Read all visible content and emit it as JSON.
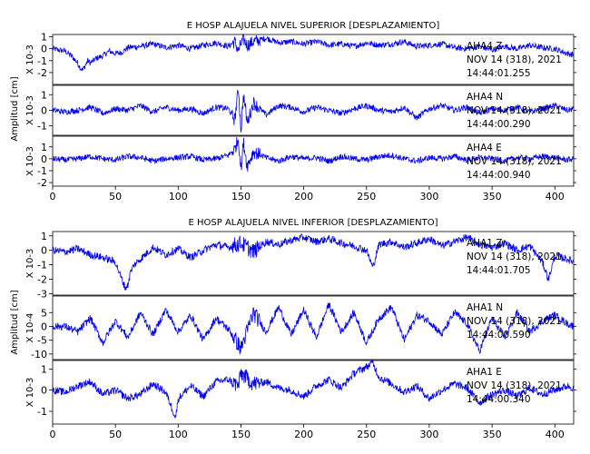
{
  "colors": {
    "trace": "#0000ee",
    "axes": "#000000",
    "background": "#ffffff"
  },
  "chart_data": [
    {
      "type": "line",
      "title": "E HOSP ALAJUELA NIVEL SUPERIOR [DESPLAZAMIENTO]",
      "ylabel": "Amplitud [cm]",
      "xlim": [
        0,
        415
      ],
      "x_ticks": [
        0,
        50,
        100,
        150,
        200,
        250,
        300,
        350,
        400
      ],
      "panels": [
        {
          "channel": "AHA4 Z",
          "scale_label": "X 10-3",
          "date": "NOV 14 (318), 2021",
          "time": "14:44:01.255",
          "ylim": [
            -3,
            1.2
          ],
          "y_ticks": [
            1,
            0,
            -1,
            -2
          ],
          "series": [
            {
              "x": [
                0,
                5,
                10,
                15,
                20,
                22,
                24,
                26,
                28,
                30,
                35,
                40,
                45,
                50,
                55,
                60,
                70,
                80,
                90,
                100,
                110,
                120,
                130,
                140,
                145,
                148,
                150,
                152,
                155,
                160,
                170,
                180,
                190,
                200,
                210,
                220,
                230,
                240,
                250,
                260,
                270,
                280,
                290,
                300,
                310,
                320,
                330,
                340,
                350,
                360,
                370,
                380,
                390,
                400,
                410,
                415
              ],
              "y": [
                0,
                -0.1,
                -0.2,
                -0.6,
                -1.2,
                -1.6,
                -1.8,
                -1.4,
                -1.0,
                -1.2,
                -0.8,
                -0.6,
                -0.2,
                -0.4,
                -0.3,
                0.1,
                0.2,
                0.4,
                0.1,
                0.3,
                0.0,
                0.3,
                0.5,
                0.2,
                0.6,
                -0.2,
                0.4,
                0.8,
                0.3,
                0.6,
                0.9,
                0.5,
                0.6,
                0.4,
                0.6,
                0.3,
                0.4,
                0.2,
                0.5,
                0.3,
                0.4,
                0.6,
                0.2,
                0.3,
                0.4,
                0.1,
                0.0,
                0.2,
                -0.1,
                0.2,
                0.0,
                0.3,
                0.1,
                0.0,
                -0.4,
                -0.5
              ]
            }
          ]
        },
        {
          "channel": "AHA4 N",
          "scale_label": "X 10-3",
          "date": "NOV 14 (318), 2021",
          "time": "14:44:00.290",
          "ylim": [
            -1.6,
            1.6
          ],
          "y_ticks": [
            1,
            0,
            -1
          ],
          "series": [
            {
              "x": [
                0,
                10,
                20,
                30,
                40,
                50,
                60,
                70,
                80,
                90,
                100,
                110,
                120,
                130,
                140,
                145,
                148,
                150,
                152,
                155,
                160,
                170,
                180,
                190,
                200,
                210,
                220,
                230,
                240,
                250,
                260,
                270,
                280,
                290,
                300,
                310,
                320,
                330,
                340,
                350,
                360,
                370,
                380,
                390,
                400,
                410,
                415
              ],
              "y": [
                0,
                -0.1,
                0.0,
                0.2,
                -0.2,
                0.1,
                0.0,
                0.3,
                -0.1,
                0.2,
                0.0,
                0.1,
                -0.2,
                0.2,
                0.1,
                -0.6,
                1.4,
                -1.3,
                1.0,
                -0.8,
                0.5,
                -0.3,
                0.3,
                0.2,
                -0.1,
                0.2,
                0.0,
                -0.2,
                0.1,
                0.3,
                0.0,
                -0.1,
                0.2,
                -0.5,
                0.1,
                0.3,
                0.0,
                0.2,
                -0.2,
                0.1,
                0.0,
                0.2,
                -0.1,
                0.1,
                0.3,
                0.0,
                0.1
              ]
            }
          ]
        },
        {
          "channel": "AHA4 E",
          "scale_label": "X 10-3",
          "date": "NOV 14 (318), 2021",
          "time": "14:44:00.940",
          "ylim": [
            -2.3,
            1.9
          ],
          "y_ticks": [
            1,
            0,
            -1,
            -2
          ],
          "series": [
            {
              "x": [
                0,
                10,
                20,
                30,
                40,
                50,
                60,
                70,
                80,
                90,
                100,
                110,
                120,
                130,
                140,
                145,
                148,
                150,
                152,
                155,
                160,
                170,
                180,
                190,
                200,
                210,
                220,
                230,
                240,
                250,
                260,
                270,
                280,
                290,
                300,
                310,
                320,
                330,
                340,
                350,
                360,
                370,
                380,
                390,
                400,
                410,
                415
              ],
              "y": [
                0,
                -0.1,
                0.0,
                0.2,
                0.0,
                -0.1,
                0.2,
                0.1,
                -0.2,
                0.0,
                0.1,
                0.2,
                -0.1,
                0.0,
                0.3,
                0.8,
                1.7,
                -0.9,
                1.4,
                -0.6,
                0.6,
                0.1,
                -0.2,
                0.2,
                0.0,
                0.1,
                -0.2,
                0.2,
                0.0,
                -0.1,
                0.2,
                0.3,
                0.0,
                -0.2,
                0.1,
                0.0,
                0.2,
                -0.1,
                0.1,
                0.0,
                -0.2,
                0.1,
                0.0,
                0.2,
                0.1,
                -0.1,
                0.0
              ]
            }
          ]
        }
      ]
    },
    {
      "type": "line",
      "title": "E HOSP ALAJUELA NIVEL INFERIOR [DESPLAZAMIENTO]",
      "ylabel": "Amplitud [cm]",
      "xlim": [
        0,
        415
      ],
      "x_ticks": [
        0,
        50,
        100,
        150,
        200,
        250,
        300,
        350,
        400
      ],
      "panels": [
        {
          "channel": "AHA1 Z",
          "scale_label": "X 10-3",
          "date": "NOV 14 (318), 2021",
          "time": "14:44:01.705",
          "ylim": [
            -3.1,
            1.3
          ],
          "y_ticks": [
            1,
            0,
            -1,
            -2,
            -3
          ],
          "series": [
            {
              "x": [
                0,
                10,
                20,
                30,
                40,
                50,
                55,
                58,
                60,
                62,
                65,
                70,
                80,
                90,
                100,
                110,
                120,
                130,
                140,
                150,
                160,
                170,
                180,
                190,
                200,
                210,
                220,
                230,
                240,
                250,
                255,
                258,
                260,
                270,
                280,
                290,
                300,
                310,
                320,
                330,
                340,
                350,
                360,
                370,
                380,
                390,
                395,
                400,
                410,
                415
              ],
              "y": [
                0,
                -0.1,
                0.1,
                -0.3,
                -0.5,
                -0.8,
                -2.0,
                -2.6,
                -2.4,
                -1.5,
                -1.0,
                -0.6,
                0.2,
                -0.3,
                0.1,
                -0.5,
                0.0,
                0.4,
                0.2,
                0.5,
                -0.1,
                0.6,
                0.4,
                0.7,
                0.9,
                0.6,
                0.8,
                0.5,
                0.3,
                0.0,
                -1.2,
                -0.2,
                0.4,
                0.6,
                0.2,
                0.5,
                0.8,
                0.3,
                0.6,
                0.9,
                0.4,
                0.2,
                0.5,
                0.0,
                0.3,
                -0.8,
                -2.0,
                -0.4,
                -0.6,
                -0.8
              ]
            }
          ]
        },
        {
          "channel": "AHA1 N",
          "scale_label": "X 10-4",
          "date": "NOV 14 (318), 2021",
          "time": "14:44:00.590",
          "ylim": [
            -12,
            11
          ],
          "y_ticks": [
            5,
            0,
            -5,
            -10
          ],
          "series": [
            {
              "x": [
                0,
                10,
                20,
                30,
                40,
                50,
                60,
                70,
                80,
                90,
                100,
                110,
                120,
                130,
                140,
                150,
                160,
                170,
                180,
                190,
                200,
                210,
                220,
                230,
                240,
                250,
                260,
                270,
                280,
                290,
                300,
                310,
                320,
                330,
                340,
                350,
                360,
                370,
                380,
                390,
                400,
                410,
                415
              ],
              "y": [
                0,
                0,
                -2,
                3,
                -6,
                2,
                -4,
                5,
                -3,
                6,
                -2,
                4,
                -5,
                3,
                -1,
                -8,
                5,
                -2,
                7,
                -3,
                6,
                -4,
                8,
                -2,
                5,
                -6,
                3,
                7,
                -5,
                4,
                2,
                -3,
                5,
                1,
                -9,
                3,
                -4,
                5,
                -2,
                2,
                4,
                1,
                0
              ]
            }
          ]
        },
        {
          "channel": "AHA1 E",
          "scale_label": "X 10-3",
          "date": "NOV 14 (318), 2021",
          "time": "14:44:00.340",
          "ylim": [
            -1.6,
            1.4
          ],
          "y_ticks": [
            1,
            0,
            -1
          ],
          "series": [
            {
              "x": [
                0,
                10,
                20,
                30,
                40,
                50,
                60,
                70,
                80,
                90,
                98,
                100,
                110,
                120,
                130,
                140,
                148,
                150,
                160,
                170,
                180,
                190,
                200,
                210,
                220,
                230,
                240,
                250,
                255,
                260,
                270,
                280,
                290,
                300,
                310,
                320,
                330,
                340,
                350,
                360,
                370,
                380,
                390,
                400,
                410,
                415
              ],
              "y": [
                0,
                -0.1,
                0.2,
                0.4,
                -0.2,
                0.0,
                -0.4,
                -0.2,
                0.3,
                -0.1,
                -1.3,
                -0.4,
                0.2,
                -0.3,
                0.4,
                0.5,
                0.2,
                0.8,
                0.3,
                0.4,
                0.1,
                0.0,
                -0.3,
                0.2,
                0.5,
                0.1,
                0.8,
                1.1,
                1.3,
                0.6,
                0.3,
                -0.1,
                0.2,
                -0.4,
                0.0,
                0.3,
                0.1,
                -0.6,
                -0.2,
                0.0,
                -0.3,
                0.1,
                -0.2,
                0.0,
                0.2,
                0.1
              ]
            }
          ]
        }
      ]
    }
  ]
}
